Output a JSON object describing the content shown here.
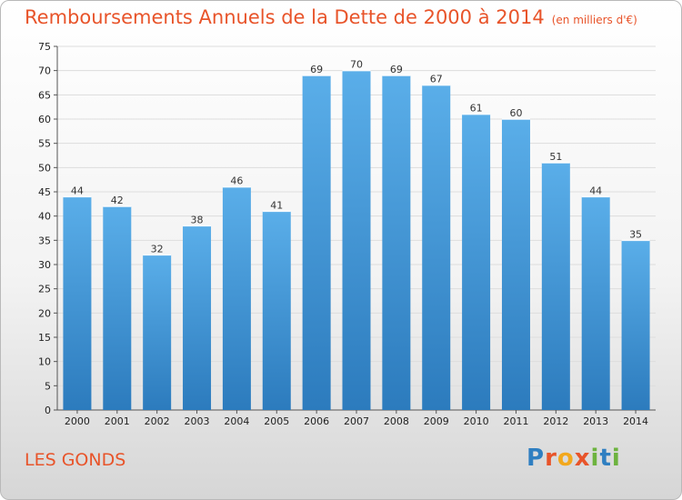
{
  "header": {
    "title": "Remboursements Annuels de la Dette de 2000 à 2014",
    "unit": "(en milliers d'€)"
  },
  "footer": {
    "commune": "LES GONDS",
    "logo_text": "Proxiti",
    "logo_letters": [
      {
        "char": "P",
        "color": "#2f7fc1"
      },
      {
        "char": "r",
        "color": "#e8542a"
      },
      {
        "char": "o",
        "color": "#f2a81d"
      },
      {
        "char": "x",
        "color": "#e8542a"
      },
      {
        "char": "i",
        "color": "#6db33f"
      },
      {
        "char": "t",
        "color": "#2f7fc1"
      },
      {
        "char": "i",
        "color": "#6db33f"
      }
    ]
  },
  "colors": {
    "title": "#e8542a",
    "bar_top": "#5aaee9",
    "bar_bottom": "#2c7bbd",
    "grid": "#dddddd"
  },
  "chart_data": {
    "type": "bar",
    "title": "Remboursements Annuels de la Dette de 2000 à 2014",
    "subtitle": "(en milliers d'€)",
    "xlabel": "",
    "ylabel": "",
    "categories": [
      "2000",
      "2001",
      "2002",
      "2003",
      "2004",
      "2005",
      "2006",
      "2007",
      "2008",
      "2009",
      "2010",
      "2011",
      "2012",
      "2013",
      "2014"
    ],
    "values": [
      44,
      42,
      32,
      38,
      46,
      41,
      69,
      70,
      69,
      67,
      61,
      60,
      51,
      44,
      35
    ],
    "ylim": [
      0,
      75
    ],
    "yticks": [
      0,
      5,
      10,
      15,
      20,
      25,
      30,
      35,
      40,
      45,
      50,
      55,
      60,
      65,
      70,
      75
    ],
    "grid": true,
    "legend": "none"
  }
}
